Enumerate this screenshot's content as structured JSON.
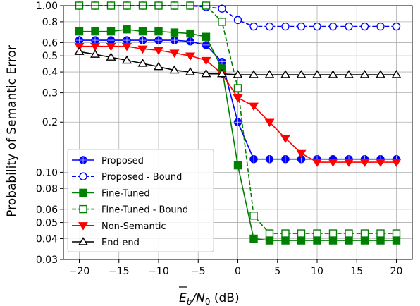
{
  "chart_data": {
    "type": "line",
    "xlabel_parts": {
      "base": "E",
      "sub_b": "b",
      "slash": "/N",
      "sub_0": "0",
      "unit": " (dB)"
    },
    "ylabel": "Probability of Semantic Error",
    "xlim": [
      -22,
      22
    ],
    "ylim": [
      0.03,
      1.0
    ],
    "yscale": "log",
    "grid": true,
    "legend_position": "lower-left",
    "x_ticks": [
      -20,
      -15,
      -10,
      -5,
      0,
      5,
      10,
      15,
      20
    ],
    "x_tick_labels": [
      "−20",
      "−15",
      "−10",
      "−5",
      "0",
      "5",
      "10",
      "15",
      "20"
    ],
    "y_ticks": [
      0.03,
      0.04,
      0.05,
      0.06,
      0.08,
      0.1,
      0.2,
      0.3,
      0.4,
      0.5,
      0.6,
      0.8,
      1.0
    ],
    "y_tick_labels": [
      "0.03",
      "0.04",
      "0.05",
      "0.06",
      "0.08",
      "0.10",
      "0.2",
      "0.3",
      "0.4",
      "0.5",
      "0.6",
      "0.8",
      "1.00"
    ],
    "x": [
      -20,
      -18,
      -16,
      -14,
      -12,
      -10,
      -8,
      -6,
      -4,
      -2,
      0,
      2,
      4,
      6,
      8,
      10,
      12,
      14,
      16,
      18,
      20
    ],
    "series": [
      {
        "name": "Proposed",
        "color": "#0000ff",
        "dash": false,
        "marker": "circle",
        "filled": true,
        "values": [
          0.62,
          0.62,
          0.62,
          0.62,
          0.62,
          0.62,
          0.62,
          0.61,
          0.58,
          0.46,
          0.2,
          0.12,
          0.12,
          0.12,
          0.12,
          0.12,
          0.12,
          0.12,
          0.12,
          0.12,
          0.12
        ]
      },
      {
        "name": "Proposed - Bound",
        "color": "#0000ff",
        "dash": true,
        "marker": "circle",
        "filled": false,
        "values": [
          1.0,
          1.0,
          1.0,
          1.0,
          1.0,
          1.0,
          1.0,
          1.0,
          0.98,
          0.96,
          0.82,
          0.75,
          0.75,
          0.75,
          0.75,
          0.75,
          0.75,
          0.75,
          0.75,
          0.75,
          0.75
        ]
      },
      {
        "name": "Fine-Tuned",
        "color": "#008000",
        "dash": false,
        "marker": "square",
        "filled": true,
        "values": [
          0.7,
          0.7,
          0.7,
          0.72,
          0.7,
          0.7,
          0.69,
          0.68,
          0.65,
          0.42,
          0.11,
          0.04,
          0.039,
          0.039,
          0.039,
          0.039,
          0.039,
          0.039,
          0.039,
          0.039,
          0.039
        ]
      },
      {
        "name": "Fine-Tuned - Bound",
        "color": "#008000",
        "dash": true,
        "marker": "square",
        "filled": false,
        "values": [
          1.0,
          1.0,
          1.0,
          1.0,
          1.0,
          1.0,
          1.0,
          1.0,
          1.0,
          0.8,
          0.32,
          0.055,
          0.043,
          0.043,
          0.043,
          0.043,
          0.043,
          0.043,
          0.043,
          0.043,
          0.043
        ]
      },
      {
        "name": "Non-Semantic",
        "color": "#ff0000",
        "dash": false,
        "marker": "triangle-down",
        "filled": true,
        "values": [
          0.57,
          0.57,
          0.57,
          0.57,
          0.55,
          0.54,
          0.52,
          0.5,
          0.47,
          0.39,
          0.28,
          0.25,
          0.2,
          0.16,
          0.13,
          0.115,
          0.115,
          0.115,
          0.115,
          0.115,
          0.115
        ]
      },
      {
        "name": "End-end",
        "color": "#000000",
        "dash": false,
        "marker": "triangle-up",
        "filled": false,
        "values": [
          0.53,
          0.51,
          0.49,
          0.47,
          0.45,
          0.43,
          0.41,
          0.4,
          0.39,
          0.39,
          0.385,
          0.385,
          0.385,
          0.385,
          0.385,
          0.385,
          0.385,
          0.385,
          0.385,
          0.385,
          0.385
        ]
      }
    ]
  }
}
